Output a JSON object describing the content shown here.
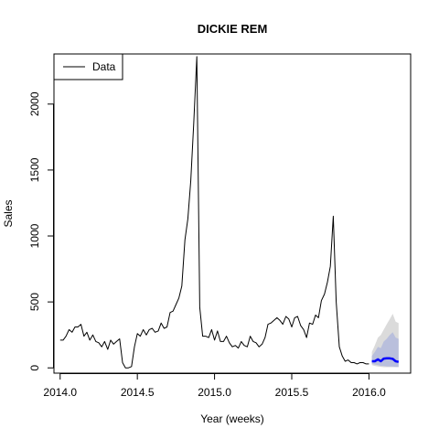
{
  "chart_data": {
    "type": "line",
    "title": "DICKIE REM",
    "xlabel": "Year (weeks)",
    "ylabel": "Sales",
    "xlim": [
      2013.96,
      2016.27
    ],
    "ylim": [
      -40,
      2380
    ],
    "x_ticks": [
      2014.0,
      2014.5,
      2015.0,
      2015.5,
      2016.0
    ],
    "x_tick_labels": [
      "2014.0",
      "2014.5",
      "2015.0",
      "2015.5",
      "2016.0"
    ],
    "y_ticks": [
      0,
      500,
      1000,
      1500,
      2000
    ],
    "y_tick_labels": [
      "0",
      "500",
      "1000",
      "1500",
      "2000"
    ],
    "legend": {
      "position": "top-left",
      "entries": [
        "Data"
      ]
    },
    "colors": {
      "data_line": "#000000",
      "forecast_line": "#0000ff",
      "band_outer": "#dbdbdb",
      "band_inner": "#b9bfdc"
    },
    "series": [
      {
        "name": "Data",
        "x": [
          2014.0,
          2014.019,
          2014.038,
          2014.058,
          2014.077,
          2014.096,
          2014.115,
          2014.135,
          2014.154,
          2014.173,
          2014.192,
          2014.212,
          2014.231,
          2014.25,
          2014.269,
          2014.288,
          2014.308,
          2014.327,
          2014.346,
          2014.365,
          2014.385,
          2014.404,
          2014.423,
          2014.442,
          2014.462,
          2014.481,
          2014.5,
          2014.519,
          2014.538,
          2014.558,
          2014.577,
          2014.596,
          2014.615,
          2014.635,
          2014.654,
          2014.673,
          2014.692,
          2014.712,
          2014.731,
          2014.75,
          2014.769,
          2014.788,
          2014.808,
          2014.827,
          2014.846,
          2014.865,
          2014.885,
          2014.904,
          2014.923,
          2014.942,
          2014.962,
          2014.981,
          2015.0,
          2015.019,
          2015.038,
          2015.058,
          2015.077,
          2015.096,
          2015.115,
          2015.135,
          2015.154,
          2015.173,
          2015.192,
          2015.212,
          2015.231,
          2015.25,
          2015.269,
          2015.288,
          2015.308,
          2015.327,
          2015.346,
          2015.365,
          2015.385,
          2015.404,
          2015.423,
          2015.442,
          2015.462,
          2015.481,
          2015.5,
          2015.519,
          2015.538,
          2015.558,
          2015.577,
          2015.596,
          2015.615,
          2015.635,
          2015.654,
          2015.673,
          2015.692,
          2015.712,
          2015.731,
          2015.75,
          2015.769,
          2015.788,
          2015.808,
          2015.827,
          2015.846,
          2015.865,
          2015.885,
          2015.904,
          2015.923,
          2015.942,
          2015.962,
          2015.981,
          2016.0
        ],
        "y": [
          210,
          210,
          240,
          290,
          270,
          310,
          310,
          330,
          240,
          270,
          210,
          250,
          200,
          190,
          160,
          200,
          140,
          210,
          180,
          200,
          220,
          40,
          0,
          0,
          10,
          160,
          260,
          240,
          290,
          250,
          290,
          300,
          270,
          280,
          340,
          300,
          310,
          420,
          430,
          480,
          530,
          620,
          970,
          1130,
          1420,
          1850,
          2360,
          460,
          240,
          240,
          230,
          290,
          210,
          280,
          200,
          200,
          240,
          190,
          160,
          170,
          150,
          200,
          170,
          160,
          240,
          200,
          190,
          160,
          180,
          230,
          330,
          340,
          360,
          380,
          360,
          330,
          390,
          370,
          310,
          380,
          390,
          320,
          290,
          230,
          340,
          330,
          400,
          380,
          510,
          560,
          650,
          770,
          1150,
          500,
          160,
          90,
          50,
          60,
          40,
          40,
          30,
          40,
          40,
          30,
          30
        ]
      },
      {
        "name": "",
        "x": [
          2016.019,
          2016.038,
          2016.058,
          2016.077,
          2016.096,
          2016.115,
          2016.135,
          2016.154,
          2016.173,
          2016.192
        ],
        "y": [
          50,
          50,
          65,
          50,
          70,
          72,
          72,
          68,
          50,
          45
        ]
      }
    ],
    "interval_80": {
      "x": [
        2016.019,
        2016.038,
        2016.058,
        2016.077,
        2016.096,
        2016.115,
        2016.135,
        2016.154,
        2016.173,
        2016.192
      ],
      "lower": [
        30,
        25,
        20,
        15,
        15,
        10,
        10,
        10,
        8,
        8
      ],
      "upper": [
        90,
        120,
        160,
        150,
        200,
        220,
        250,
        270,
        230,
        220
      ]
    },
    "interval_95": {
      "x": [
        2016.019,
        2016.038,
        2016.058,
        2016.077,
        2016.096,
        2016.115,
        2016.135,
        2016.154,
        2016.173,
        2016.192
      ],
      "lower": [
        20,
        15,
        10,
        8,
        5,
        5,
        5,
        5,
        5,
        5
      ],
      "upper": [
        120,
        170,
        230,
        250,
        290,
        330,
        370,
        410,
        350,
        340
      ]
    }
  }
}
